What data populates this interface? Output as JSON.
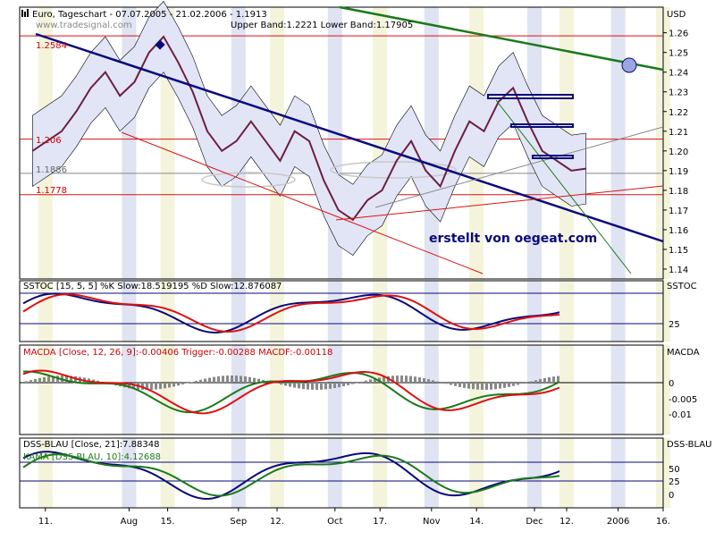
{
  "header": {
    "icon": "chart-pattern-icon",
    "title_line": "Euro, Tageschart - 07.07.2005 - 21.02.2006 - 1.1913",
    "bands_line": "Upper Band:1.2221 Lower Band:1.17905",
    "source_line": "www.tradesignal.com"
  },
  "watermark": "erstellt von oegeat.com",
  "price_labels": {
    "left_high": "1.2584",
    "left_mid": "1.206",
    "left_1886": "1.1886",
    "left_low": "1.1778"
  },
  "colors": {
    "price_axis_bg": "#ffffff",
    "stripe_blue": "#dfe3f2",
    "stripe_yellow": "#f4f4dc",
    "band_fill": "#e2e5f6",
    "main_trend": "#0a0a7a",
    "green_trend": "#1a7a1a",
    "red_line": "#dd1111",
    "black": "#000000",
    "grey": "#888888",
    "ellipse": "#c8c8c8"
  },
  "chart_data": [
    {
      "type": "line",
      "panel": "price",
      "title": "Euro, Tageschart - 07.07.2005 - 21.02.2006 - 1.1913",
      "unit": "USD",
      "ylim": [
        1.135,
        1.273
      ],
      "yticks": [
        1.14,
        1.15,
        1.16,
        1.17,
        1.18,
        1.19,
        1.2,
        1.21,
        1.22,
        1.23,
        1.24,
        1.25,
        1.26
      ],
      "xlim": [
        0,
        100
      ],
      "x_ticks": [
        {
          "label": "11.",
          "x": 4
        },
        {
          "label": "Aug",
          "x": 17
        },
        {
          "label": "15.",
          "x": 23
        },
        {
          "label": "Sep",
          "x": 34
        },
        {
          "label": "12.",
          "x": 40
        },
        {
          "label": "Oct",
          "x": 49
        },
        {
          "label": "17.",
          "x": 56
        },
        {
          "label": "Nov",
          "x": 64
        },
        {
          "label": "14.",
          "x": 71
        },
        {
          "label": "Dec",
          "x": 80
        },
        {
          "label": "12.",
          "x": 85
        },
        {
          "label": "2006",
          "x": 93
        },
        {
          "label": "16.",
          "x": 100
        }
      ],
      "series": [
        {
          "values": [
            1.2,
            1.205,
            1.21,
            1.22,
            1.232,
            1.24,
            1.228,
            1.235,
            1.25,
            1.258,
            1.245,
            1.23,
            1.21,
            1.2,
            1.205,
            1.215,
            1.205,
            1.195,
            1.21,
            1.205,
            1.185,
            1.17,
            1.165,
            1.175,
            1.18,
            1.195,
            1.205,
            1.19,
            1.182,
            1.2,
            1.215,
            1.21,
            1.225,
            1.232,
            1.215,
            1.2,
            1.195,
            1.19,
            1.191
          ]
        }
      ],
      "bollinger": {
        "upper_value": 1.2221,
        "lower_value": 1.17905
      },
      "horizontal_levels": [
        1.2584,
        1.206,
        1.1886,
        1.1778
      ]
    },
    {
      "type": "line",
      "panel": "sstoc",
      "title": "SSTOC [15, 5, 5] %K Slow:18.519195 %D Slow:12.876087",
      "series": [
        {
          "name": "%K Slow",
          "last": 18.519195
        },
        {
          "name": "%D Slow",
          "last": 12.876087
        }
      ],
      "yticks": [
        25
      ],
      "ylabel": "SSTOC"
    },
    {
      "type": "line",
      "panel": "macda",
      "title": "MACDA [Close, 12, 26, 9]:-0.00406 Trigger:-0.00288 MACDF:-0.00118",
      "series": [
        {
          "name": "MACDA",
          "last": -0.00406
        },
        {
          "name": "Trigger",
          "last": -0.00288
        },
        {
          "name": "MACDF",
          "last": -0.00118
        }
      ],
      "yticks": [
        0,
        -0.005,
        -0.01
      ],
      "ylabel": "MACDA"
    },
    {
      "type": "line",
      "panel": "dss",
      "title": "DSS-BLAU [Close, 21]:7.88348",
      "second_title": "KAMA [DSS-BLAU, 10]:4.12688",
      "series": [
        {
          "name": "DSS-BLAU",
          "last": 7.88348
        },
        {
          "name": "KAMA",
          "last": 4.12688
        }
      ],
      "yticks": [
        50,
        25,
        0
      ],
      "ylabel": "DSS-BLAU"
    }
  ]
}
